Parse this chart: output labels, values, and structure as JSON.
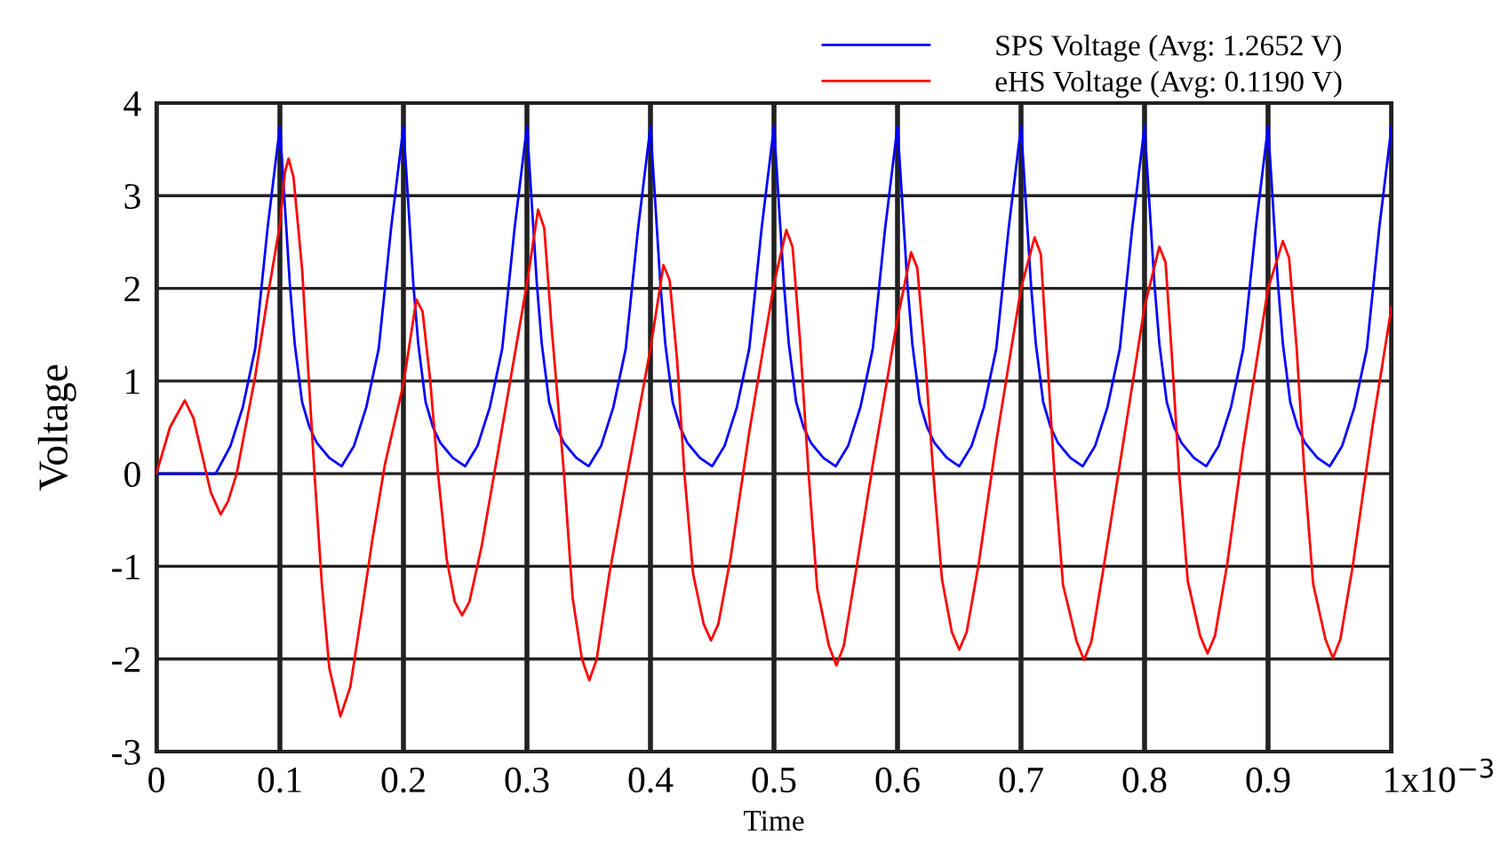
{
  "chart_data": {
    "type": "line",
    "xlabel": "Time",
    "ylabel": "Voltage",
    "xlim": [
      0,
      1
    ],
    "xticks": [
      0,
      0.1,
      0.2,
      0.3,
      0.4,
      0.5,
      0.6,
      0.7,
      0.8,
      0.9,
      1
    ],
    "annotations": [
      "x10$^{−3}$"
    ],
    "ylim": [
      -3,
      4
    ],
    "yticks": [
      -3,
      -2,
      -1,
      0,
      1,
      2,
      3,
      4
    ],
    "grid": true,
    "legend": "top right",
    "marker": "none",
    "line_style": "solid",
    "series": [
      {
        "name": "SPS Voltage (Avg: 1.2652 V)",
        "color": "#0000ff",
        "x": [
          0,
          0.048,
          0.06,
          0.07,
          0.08,
          0.09,
          0.1,
          0.104,
          0.108,
          0.112,
          0.118,
          0.124,
          0.13,
          0.14,
          0.15,
          0.16,
          0.17,
          0.18,
          0.19,
          0.2,
          0.204,
          0.208,
          0.212,
          0.218,
          0.224,
          0.23,
          0.24,
          0.25,
          0.26,
          0.27,
          0.28,
          0.29,
          0.3,
          0.304,
          0.308,
          0.312,
          0.318,
          0.324,
          0.33,
          0.34,
          0.35,
          0.36,
          0.37,
          0.38,
          0.39,
          0.4,
          0.404,
          0.408,
          0.412,
          0.418,
          0.424,
          0.43,
          0.44,
          0.45,
          0.46,
          0.47,
          0.48,
          0.49,
          0.5,
          0.504,
          0.508,
          0.512,
          0.518,
          0.524,
          0.53,
          0.54,
          0.55,
          0.56,
          0.57,
          0.58,
          0.59,
          0.6,
          0.604,
          0.608,
          0.612,
          0.618,
          0.624,
          0.63,
          0.64,
          0.65,
          0.66,
          0.67,
          0.68,
          0.69,
          0.7,
          0.704,
          0.708,
          0.712,
          0.718,
          0.724,
          0.73,
          0.74,
          0.75,
          0.76,
          0.77,
          0.78,
          0.79,
          0.8,
          0.804,
          0.808,
          0.812,
          0.818,
          0.824,
          0.83,
          0.84,
          0.85,
          0.86,
          0.87,
          0.88,
          0.89,
          0.9,
          0.904,
          0.908,
          0.912,
          0.918,
          0.924,
          0.93,
          0.94,
          0.95,
          0.96,
          0.97,
          0.98,
          0.99,
          1.0
        ],
        "values": [
          0,
          0,
          0.3,
          0.72,
          1.35,
          2.65,
          3.75,
          2.9,
          2.05,
          1.4,
          0.77,
          0.5,
          0.33,
          0.17,
          0.08,
          0.3,
          0.72,
          1.35,
          2.65,
          3.75,
          2.9,
          2.05,
          1.4,
          0.77,
          0.5,
          0.33,
          0.17,
          0.08,
          0.3,
          0.72,
          1.35,
          2.65,
          3.75,
          2.9,
          2.05,
          1.4,
          0.77,
          0.5,
          0.33,
          0.17,
          0.08,
          0.3,
          0.72,
          1.35,
          2.65,
          3.75,
          2.9,
          2.05,
          1.4,
          0.77,
          0.5,
          0.33,
          0.17,
          0.08,
          0.3,
          0.72,
          1.35,
          2.65,
          3.75,
          2.9,
          2.05,
          1.4,
          0.77,
          0.5,
          0.33,
          0.17,
          0.08,
          0.3,
          0.72,
          1.35,
          2.65,
          3.75,
          2.9,
          2.05,
          1.4,
          0.77,
          0.5,
          0.33,
          0.17,
          0.08,
          0.3,
          0.72,
          1.35,
          2.65,
          3.75,
          2.9,
          2.05,
          1.4,
          0.77,
          0.5,
          0.33,
          0.17,
          0.08,
          0.3,
          0.72,
          1.35,
          2.65,
          3.75,
          2.9,
          2.05,
          1.4,
          0.77,
          0.5,
          0.33,
          0.17,
          0.08,
          0.3,
          0.72,
          1.35,
          2.65,
          3.75,
          2.9,
          2.05,
          1.4,
          0.77,
          0.5,
          0.33,
          0.17,
          0.08,
          0.3,
          0.72,
          1.35,
          2.65,
          3.75
        ]
      },
      {
        "name": "eHS Voltage (Avg: 0.1190 V)",
        "color": "#ff0000",
        "x": [
          0,
          0.011,
          0.023,
          0.03,
          0.037,
          0.044,
          0.052,
          0.058,
          0.065,
          0.08,
          0.09,
          0.1,
          0.104,
          0.107,
          0.111,
          0.118,
          0.123,
          0.128,
          0.134,
          0.14,
          0.149,
          0.157,
          0.165,
          0.175,
          0.185,
          0.2,
          0.2105,
          0.2155,
          0.2215,
          0.228,
          0.235,
          0.2415,
          0.2475,
          0.2535,
          0.2635,
          0.28,
          0.3,
          0.309,
          0.314,
          0.32,
          0.33,
          0.337,
          0.3445,
          0.3505,
          0.3565,
          0.3665,
          0.38,
          0.4,
          0.4105,
          0.4155,
          0.4215,
          0.4275,
          0.4345,
          0.443,
          0.449,
          0.455,
          0.465,
          0.48,
          0.5,
          0.51,
          0.515,
          0.521,
          0.528,
          0.535,
          0.5445,
          0.5505,
          0.5565,
          0.5665,
          0.58,
          0.6,
          0.611,
          0.616,
          0.622,
          0.629,
          0.636,
          0.644,
          0.65,
          0.656,
          0.666,
          0.68,
          0.7,
          0.711,
          0.716,
          0.721,
          0.727,
          0.734,
          0.745,
          0.751,
          0.757,
          0.767,
          0.78,
          0.8,
          0.812,
          0.817,
          0.822,
          0.828,
          0.835,
          0.845,
          0.851,
          0.857,
          0.867,
          0.88,
          0.9,
          0.912,
          0.917,
          0.923,
          0.9295,
          0.9365,
          0.9465,
          0.9525,
          0.9585,
          0.9685,
          0.985,
          1.0
        ],
        "values": [
          0,
          0.5,
          0.79,
          0.6,
          0.2,
          -0.2,
          -0.44,
          -0.3,
          0,
          1.05,
          1.9,
          2.69,
          3.25,
          3.4,
          3.2,
          2.2,
          1.1,
          0,
          -1.2,
          -2.1,
          -2.62,
          -2.3,
          -1.6,
          -0.7,
          0.1,
          0.97,
          1.88,
          1.75,
          1.03,
          0,
          -0.92,
          -1.38,
          -1.53,
          -1.38,
          -0.77,
          0.5,
          2.05,
          2.85,
          2.65,
          1.57,
          0,
          -1.34,
          -2.0,
          -2.23,
          -2.0,
          -1.1,
          -0.1,
          1.35,
          2.25,
          2.09,
          1.24,
          0,
          -1.08,
          -1.62,
          -1.8,
          -1.62,
          -0.9,
          0.45,
          2.05,
          2.63,
          2.45,
          1.45,
          0,
          -1.24,
          -1.86,
          -2.07,
          -1.86,
          -1.04,
          0.1,
          1.67,
          2.39,
          2.22,
          1.31,
          0,
          -1.14,
          -1.71,
          -1.9,
          -1.71,
          -0.95,
          0.35,
          2.0,
          2.55,
          2.37,
          1.3,
          0,
          -1.2,
          -1.81,
          -2.01,
          -1.81,
          -1.0,
          0.1,
          1.8,
          2.45,
          2.28,
          1.3,
          0,
          -1.16,
          -1.75,
          -1.94,
          -1.75,
          -0.97,
          0.3,
          2.0,
          2.51,
          2.33,
          1.38,
          0,
          -1.19,
          -1.79,
          -1.99,
          -1.79,
          -1.0,
          0.55,
          1.8
        ]
      }
    ]
  }
}
